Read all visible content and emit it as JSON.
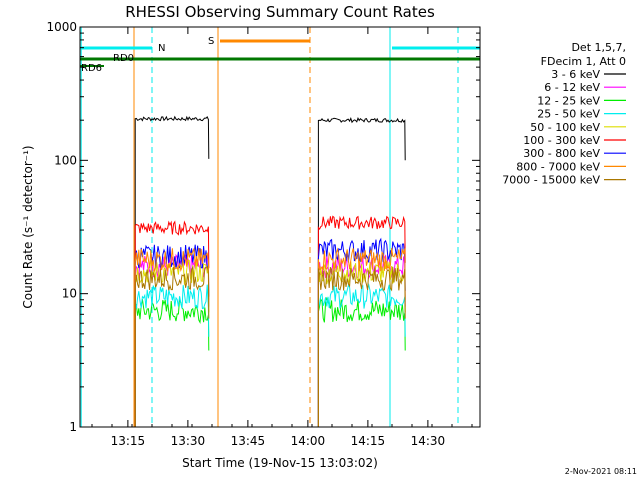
{
  "chart_data": {
    "type": "line",
    "title": "RHESSI Observing Summary Count Rates",
    "xlabel": "Start Time (19-Nov-15 13:03:02)",
    "ylabel": "Count Rate (s⁻¹ detector⁻¹)",
    "yscale": "log",
    "xlim_minutes": [
      0,
      100
    ],
    "ylim": [
      1,
      1000
    ],
    "x_ticks": [
      {
        "label": "13:15",
        "minutes": 11.97
      },
      {
        "label": "13:30",
        "minutes": 26.97
      },
      {
        "label": "13:45",
        "minutes": 41.97
      },
      {
        "label": "14:00",
        "minutes": 56.97
      },
      {
        "label": "14:15",
        "minutes": 71.97
      },
      {
        "label": "14:30",
        "minutes": 86.97
      }
    ],
    "y_ticks": [
      {
        "label": "1",
        "value": 1
      },
      {
        "label": "10",
        "value": 10
      },
      {
        "label": "100",
        "value": 100
      },
      {
        "label": "1000",
        "value": 1000
      }
    ],
    "legend": {
      "header": [
        "Det 1,5,7,",
        "FDecim 1, Att 0"
      ],
      "placement": "right"
    },
    "intervals": [
      {
        "start": 13.8,
        "end": 32.2
      },
      {
        "start": 59.6,
        "end": 81.3
      }
    ],
    "series": [
      {
        "name": "3 - 6 keV",
        "color": "#000000",
        "values": [
          205,
          200
        ]
      },
      {
        "name": "6 - 12 keV",
        "color": "#ff00ff",
        "values": [
          16,
          16
        ]
      },
      {
        "name": "12 - 25 keV",
        "color": "#00ee00",
        "values": [
          7.5,
          7.5
        ]
      },
      {
        "name": "25 - 50 keV",
        "color": "#00eeee",
        "values": [
          9.5,
          9.5
        ]
      },
      {
        "name": "50 - 100 keV",
        "color": "#dddd00",
        "values": [
          14.5,
          14.5
        ]
      },
      {
        "name": "100 - 300 keV",
        "color": "#ff0000",
        "values": [
          31,
          34
        ]
      },
      {
        "name": "300 - 800 keV",
        "color": "#0000ff",
        "values": [
          19,
          21
        ]
      },
      {
        "name": "800 - 7000 keV",
        "color": "#ff8800",
        "values": [
          18,
          18
        ]
      },
      {
        "name": "7000 - 15000 keV",
        "color": "#aa7700",
        "values": [
          13,
          13
        ]
      }
    ],
    "flags": [
      {
        "label": "N",
        "color": "#00eeee",
        "segments": [
          [
            0,
            18
          ],
          [
            78,
            100
          ]
        ]
      },
      {
        "label": "S",
        "color": "#ff8800",
        "segments": [
          [
            35,
            57.5
          ]
        ]
      },
      {
        "label": "RD0",
        "color": "#007700",
        "segments": [
          [
            0,
            100
          ]
        ]
      },
      {
        "label": "RD6",
        "color": "#007700",
        "segments": [
          [
            0,
            6
          ]
        ]
      }
    ],
    "vlines": [
      {
        "minutes": 0.3,
        "color": "#00eeee",
        "style": "solid"
      },
      {
        "minutes": 18,
        "color": "#00eeee",
        "style": "dashed"
      },
      {
        "minutes": 13.5,
        "color": "#ff8800",
        "style": "solid"
      },
      {
        "minutes": 34.5,
        "color": "#ff8800",
        "style": "solid"
      },
      {
        "minutes": 57.5,
        "color": "#ff8800",
        "style": "dashed"
      },
      {
        "minutes": 77.5,
        "color": "#00eeee",
        "style": "solid"
      },
      {
        "minutes": 94.5,
        "color": "#00eeee",
        "style": "dashed"
      }
    ],
    "grid": false
  },
  "footer": {
    "timestamp": "2-Nov-2021 08:11"
  }
}
